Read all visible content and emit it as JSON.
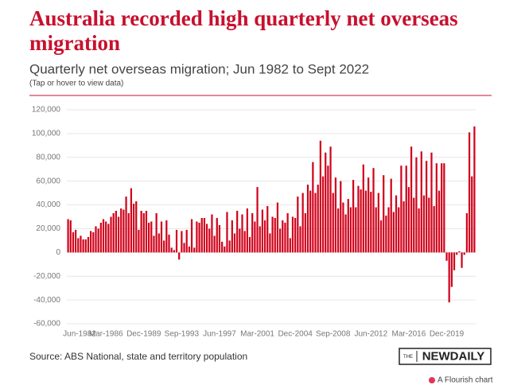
{
  "chart_data": {
    "type": "bar",
    "title": "Australia recorded high quarterly net overseas migration",
    "subtitle": "Quarterly net overseas migration; Jun 1982 to Sept 2022",
    "note": "(Tap or hover to view data)",
    "source": "Source: ABS National, state and territory population",
    "color": "#d0021b",
    "grid": true,
    "ylim": [
      -60000,
      120000
    ],
    "yticks": [
      {
        "value": -60000,
        "label": "-60,000"
      },
      {
        "value": -40000,
        "label": "-40,000"
      },
      {
        "value": -20000,
        "label": "-20,000"
      },
      0,
      {
        "value": 20000,
        "label": "20,000"
      },
      {
        "value": 40000,
        "label": "40,000"
      },
      {
        "value": 60000,
        "label": "60,000"
      },
      {
        "value": 80000,
        "label": "80,000"
      },
      {
        "value": 100000,
        "label": "100,000"
      },
      {
        "value": 120000,
        "label": "120,000"
      }
    ],
    "categories": [
      "Jun-1982",
      null,
      null,
      null,
      null,
      null,
      null,
      null,
      null,
      null,
      null,
      null,
      null,
      null,
      null,
      "Mar-1986",
      null,
      null,
      null,
      null,
      null,
      null,
      null,
      null,
      null,
      null,
      null,
      null,
      null,
      null,
      "Dec-1989",
      null,
      null,
      null,
      null,
      null,
      null,
      null,
      null,
      null,
      null,
      null,
      null,
      null,
      null,
      "Sep-1993",
      null,
      null,
      null,
      null,
      null,
      null,
      null,
      null,
      null,
      null,
      null,
      null,
      null,
      null,
      "Jun-1997",
      null,
      null,
      null,
      null,
      null,
      null,
      null,
      null,
      null,
      null,
      null,
      null,
      null,
      null,
      "Mar-2001",
      null,
      null,
      null,
      null,
      null,
      null,
      null,
      null,
      null,
      null,
      null,
      null,
      null,
      null,
      "Dec-2004",
      null,
      null,
      null,
      null,
      null,
      null,
      null,
      null,
      null,
      null,
      null,
      null,
      null,
      null,
      "Sep-2008",
      null,
      null,
      null,
      null,
      null,
      null,
      null,
      null,
      null,
      null,
      null,
      null,
      null,
      null,
      "Jun-2012",
      null,
      null,
      null,
      null,
      null,
      null,
      null,
      null,
      null,
      null,
      null,
      null,
      null,
      null,
      "Mar-2016",
      null,
      null,
      null,
      null,
      null,
      null,
      null,
      null,
      null,
      null,
      null,
      null,
      null,
      null,
      "Dec-2019",
      null,
      null,
      null,
      null,
      null,
      null,
      null,
      null,
      null,
      null,
      null
    ],
    "values": [
      28000,
      27000,
      17000,
      19000,
      12000,
      14000,
      11000,
      11000,
      13000,
      18000,
      17000,
      22000,
      20000,
      25000,
      28000,
      26000,
      24000,
      30000,
      33000,
      35000,
      30000,
      37000,
      36000,
      47000,
      33000,
      54000,
      41000,
      43000,
      19000,
      35000,
      33000,
      35000,
      25000,
      26000,
      14000,
      33000,
      16000,
      26000,
      10000,
      27000,
      15000,
      4000,
      2000,
      19000,
      -6000,
      18000,
      8000,
      19000,
      5000,
      28000,
      4000,
      26000,
      25000,
      29000,
      29000,
      24000,
      20000,
      32000,
      14000,
      29000,
      23000,
      9000,
      5000,
      34000,
      10000,
      27000,
      16000,
      35000,
      20000,
      32000,
      18000,
      37000,
      13000,
      33000,
      26000,
      55000,
      22000,
      36000,
      27000,
      39000,
      16000,
      30000,
      29000,
      42000,
      20000,
      27000,
      25000,
      33000,
      12000,
      30000,
      29000,
      47000,
      22000,
      50000,
      33000,
      57000,
      52000,
      76000,
      50000,
      57000,
      94000,
      64000,
      84000,
      73000,
      89000,
      50000,
      63000,
      37000,
      60000,
      42000,
      32000,
      45000,
      38000,
      61000,
      38000,
      56000,
      53000,
      74000,
      52000,
      63000,
      51000,
      71000,
      38000,
      50000,
      27000,
      65000,
      31000,
      38000,
      62000,
      34000,
      48000,
      38000,
      73000,
      43000,
      73000,
      55000,
      89000,
      46000,
      80000,
      37000,
      85000,
      48000,
      77000,
      46000,
      84000,
      39000,
      75000,
      52000,
      75000,
      75000,
      -7000,
      -42000,
      -29000,
      -15000,
      -2000,
      1000,
      -13000,
      -2000,
      33000,
      101000,
      64000,
      106000
    ]
  },
  "branding": {
    "prefix": "THE",
    "name": "NEWDAILY",
    "flourish": "A Flourish chart"
  }
}
